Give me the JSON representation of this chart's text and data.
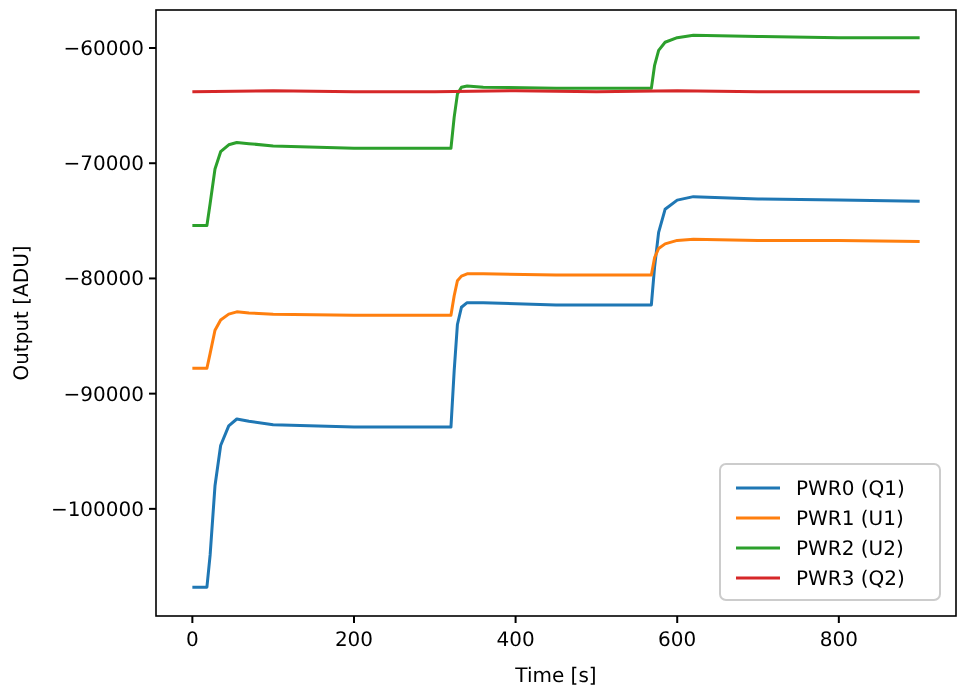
{
  "chart_data": {
    "type": "line",
    "xlabel": "Time [s]",
    "ylabel": "Output [ADU]",
    "xlim": [
      -45,
      945
    ],
    "ylim": [
      -109300,
      -56700
    ],
    "xticks": [
      0,
      200,
      400,
      600,
      800
    ],
    "yticks": [
      {
        "value": -100000,
        "label": "−100000"
      },
      {
        "value": -90000,
        "label": "−90000"
      },
      {
        "value": -80000,
        "label": "−80000"
      },
      {
        "value": -70000,
        "label": "−70000"
      },
      {
        "value": -60000,
        "label": "−60000"
      }
    ],
    "grid": false,
    "legend": "bottom right",
    "line_style": "solid",
    "marker": "none",
    "series": [
      {
        "name": "PWR0 (Q1)",
        "color": "#1f77b4",
        "x": [
          0,
          18,
          22,
          28,
          35,
          45,
          55,
          70,
          100,
          200,
          320,
          324,
          328,
          333,
          340,
          360,
          450,
          568,
          572,
          577,
          585,
          600,
          620,
          700,
          800,
          900
        ],
        "values": [
          -106800,
          -106800,
          -104000,
          -98000,
          -94500,
          -92800,
          -92200,
          -92400,
          -92700,
          -92900,
          -92900,
          -88000,
          -84000,
          -82500,
          -82100,
          -82100,
          -82300,
          -82300,
          -79000,
          -76000,
          -74000,
          -73200,
          -72900,
          -73100,
          -73200,
          -73300
        ]
      },
      {
        "name": "PWR1 (U1)",
        "color": "#ff7f0e",
        "x": [
          0,
          18,
          22,
          28,
          35,
          45,
          55,
          70,
          100,
          200,
          320,
          324,
          328,
          333,
          340,
          360,
          450,
          568,
          572,
          577,
          585,
          600,
          620,
          700,
          800,
          900
        ],
        "values": [
          -87800,
          -87800,
          -86500,
          -84500,
          -83600,
          -83100,
          -82900,
          -83000,
          -83100,
          -83200,
          -83200,
          -81500,
          -80200,
          -79800,
          -79600,
          -79600,
          -79700,
          -79700,
          -78200,
          -77400,
          -77000,
          -76700,
          -76600,
          -76700,
          -76700,
          -76800
        ]
      },
      {
        "name": "PWR2 (U2)",
        "color": "#2ca02c",
        "x": [
          0,
          18,
          22,
          28,
          35,
          45,
          55,
          70,
          100,
          200,
          320,
          324,
          328,
          333,
          340,
          360,
          450,
          568,
          572,
          577,
          585,
          600,
          620,
          700,
          800,
          900
        ],
        "values": [
          -75400,
          -75400,
          -73500,
          -70500,
          -69000,
          -68400,
          -68200,
          -68300,
          -68500,
          -68700,
          -68700,
          -66000,
          -64000,
          -63400,
          -63300,
          -63400,
          -63500,
          -63500,
          -61500,
          -60200,
          -59500,
          -59100,
          -58900,
          -59000,
          -59100,
          -59100
        ]
      },
      {
        "name": "PWR3 (Q2)",
        "color": "#d62728",
        "x": [
          0,
          100,
          200,
          300,
          400,
          500,
          600,
          700,
          800,
          900
        ],
        "values": [
          -63800,
          -63700,
          -63800,
          -63800,
          -63700,
          -63800,
          -63700,
          -63800,
          -63800,
          -63800
        ]
      }
    ]
  }
}
